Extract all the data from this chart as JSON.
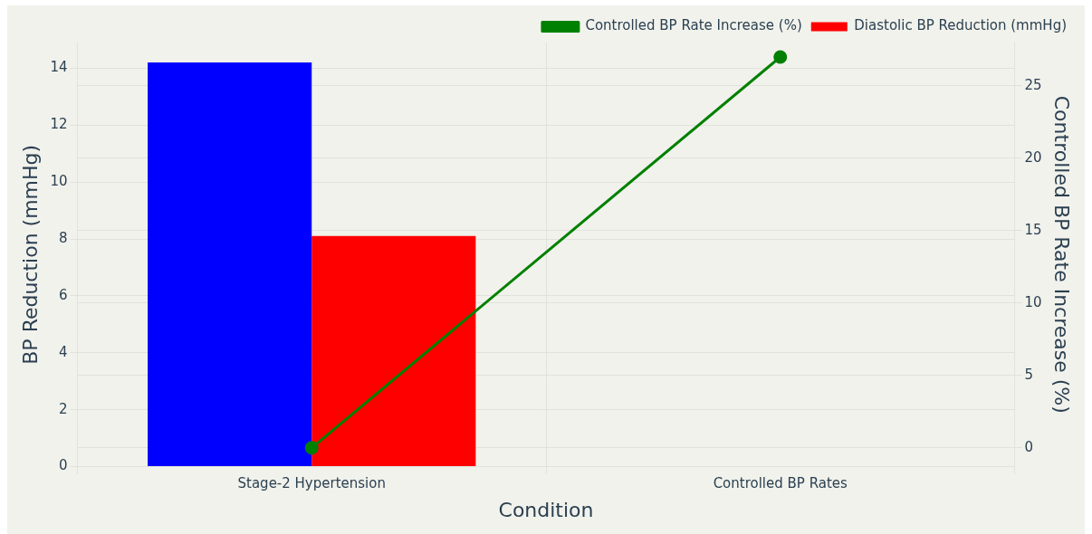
{
  "chart_data": {
    "type": "bar",
    "xlabel": "Condition",
    "ylabel": "BP Reduction (mmHg)",
    "y2label": "Controlled BP Rate Increase (%)",
    "categories": [
      "Stage-2 Hypertension",
      "Controlled BP Rates"
    ],
    "series": [
      {
        "color": "#0000ff",
        "values": [
          14.2,
          null
        ]
      },
      {
        "name": "Diastolic BP Reduction (mmHg)",
        "color": "#ff0000",
        "values": [
          8.1,
          null
        ]
      },
      {
        "type": "line",
        "name": "Controlled BP Rate Increase (%)",
        "color": "#008000",
        "axis": "y2",
        "values": [
          0,
          27
        ]
      }
    ],
    "ylim": [
      0,
      14.9
    ],
    "yticks": [
      0,
      2,
      4,
      6,
      8,
      10,
      12,
      14
    ],
    "y2lim": [
      -1.3,
      28
    ],
    "y2ticks": [
      0,
      5,
      10,
      15,
      20,
      25
    ],
    "grid": true,
    "legend": "top right",
    "marker": "circle",
    "line_style": "solid"
  }
}
